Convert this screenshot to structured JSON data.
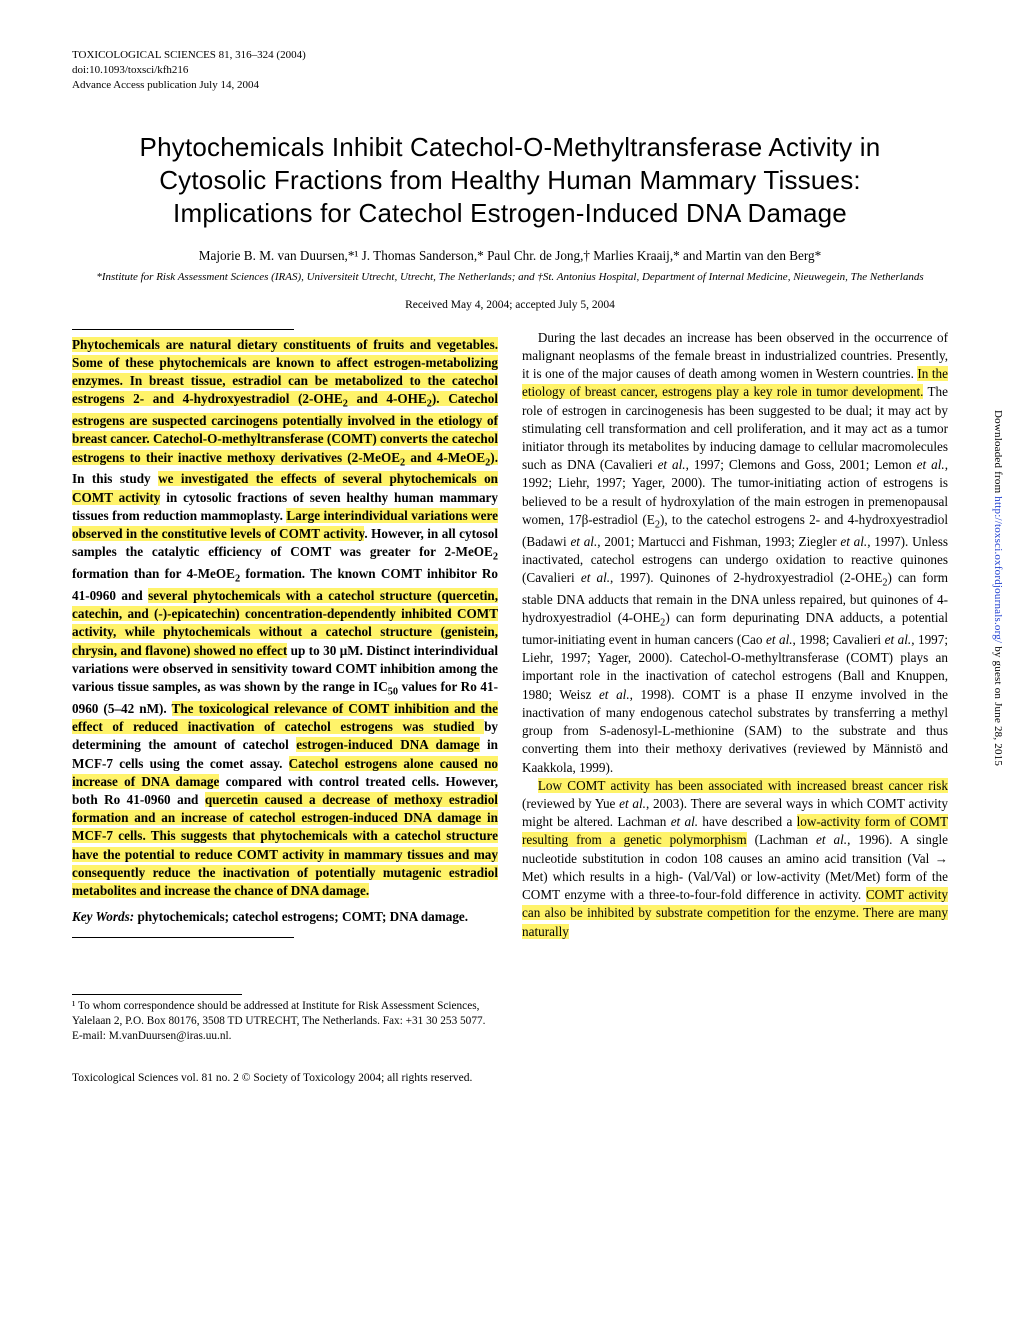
{
  "header": {
    "line1": "TOXICOLOGICAL SCIENCES 81, 316–324 (2004)",
    "line2": "doi:10.1093/toxsci/kfh216",
    "line3": "Advance Access publication July 14, 2004"
  },
  "title": {
    "line1": "Phytochemicals Inhibit Catechol-O-Methyltransferase Activity in",
    "line2": "Cytosolic Fractions from Healthy Human Mammary Tissues:",
    "line3": "Implications for Catechol Estrogen-Induced DNA Damage"
  },
  "authors": "Majorie B. M. van Duursen,*¹ J. Thomas Sanderson,* Paul Chr. de Jong,† Marlies Kraaij,* and Martin van den Berg*",
  "affiliations": "*Institute for Risk Assessment Sciences (IRAS), Universiteit Utrecht, Utrecht, The Netherlands; and †St. Antonius Hospital, Department of Internal Medicine, Nieuwegein, The Netherlands",
  "received": "Received May 4, 2004; accepted July 5, 2004",
  "highlight_color": "#fff36a",
  "abstract_segments": [
    {
      "t": "Phytochemicals are natural dietary constituents of fruits and vegetables. Some of these phytochemicals are known to affect estrogen-metabolizing enzymes. In breast tissue, estradiol can be metabolized to the catechol estrogens 2- and 4-hydroxyestradiol (2-OHE",
      "hl": true
    },
    {
      "t": "2",
      "hl": true,
      "sub": true
    },
    {
      "t": " and 4-OHE",
      "hl": true
    },
    {
      "t": "2",
      "hl": true,
      "sub": true
    },
    {
      "t": "). Catechol estrogens are suspected carcinogens potentially involved in the etiology of breast cancer. Catechol-O-methyltransferase (COMT) converts the catechol estrogens to their inactive methoxy derivatives (2-MeOE",
      "hl": true
    },
    {
      "t": "2",
      "hl": true,
      "sub": true
    },
    {
      "t": " and 4-MeOE",
      "hl": true
    },
    {
      "t": "2",
      "hl": true,
      "sub": true
    },
    {
      "t": ").",
      "hl": true
    },
    {
      "t": " In this study ",
      "hl": false
    },
    {
      "t": "we investigated the effects of several phytochemicals on COMT activity",
      "hl": true
    },
    {
      "t": " in cytosolic fractions of seven healthy human mammary tissues from reduction mammoplasty. ",
      "hl": false
    },
    {
      "t": "Large interindividual variations were observed in the constitutive levels of COMT activity",
      "hl": true
    },
    {
      "t": ". However, in all cytosol samples the catalytic efficiency of COMT was greater for 2-MeOE",
      "hl": false
    },
    {
      "t": "2",
      "hl": false,
      "sub": true
    },
    {
      "t": " formation than for 4-MeOE",
      "hl": false
    },
    {
      "t": "2",
      "hl": false,
      "sub": true
    },
    {
      "t": " formation. The known COMT inhibitor Ro 41-0960 and ",
      "hl": false
    },
    {
      "t": "several phytochemicals with a catechol structure (quercetin, catechin, and (-)-epicatechin) concentration-dependently inhibited COMT activity, while phytochemicals without a catechol structure (genistein, chrysin, and flavone) showed no effect",
      "hl": true
    },
    {
      "t": " up to 30 μM. Distinct interindividual variations were observed in sensitivity toward COMT inhibition among the various tissue samples, as was shown by the range in IC",
      "hl": false
    },
    {
      "t": "50",
      "hl": false,
      "sub": true
    },
    {
      "t": " values for Ro 41-0960 (5–42 nM). ",
      "hl": false
    },
    {
      "t": "The toxicological relevance of COMT inhibition and the effect of reduced inactivation of catechol estrogens was studied ",
      "hl": true
    },
    {
      "t": "by determining the amount of catechol ",
      "hl": false
    },
    {
      "t": "estrogen-induced DNA damage",
      "hl": true
    },
    {
      "t": " in MCF-7 cells using the comet assay. ",
      "hl": false
    },
    {
      "t": "Catechol estrogens alone caused no increase of DNA damage",
      "hl": true
    },
    {
      "t": " compared with control treated cells. However, both Ro 41-0960 and ",
      "hl": false
    },
    {
      "t": "quercetin caused a decrease of methoxy estradiol formation and an increase of catechol estrogen-induced DNA damage in MCF-7 cells. This suggests that phytochemicals with a catechol structure have the potential to reduce COMT activity in mammary tissues and may consequently reduce the inactivation of potentially mutagenic estradiol metabolites and increase the chance of DNA damage.",
      "hl": true
    }
  ],
  "keywords_label": "Key Words:",
  "keywords_text": " phytochemicals; catechol estrogens; COMT; DNA damage.",
  "footnote": "¹ To whom correspondence should be addressed at Institute for Risk Assessment Sciences, Yalelaan 2, P.O. Box 80176, 3508 TD UTRECHT, The Netherlands. Fax: +31 30 253 5077. E-mail: M.vanDuursen@iras.uu.nl.",
  "intro_html": "During the last decades an increase has been observed in the occurrence of malignant neoplasms of the female breast in industrialized countries. Presently, it is one of the major causes of death among women in Western countries. <span class=\"hl\">In the etiology of breast cancer, estrogens play a key role in tumor development.</span> The role of estrogen in carcinogenesis has been suggested to be dual; it may act by stimulating cell transformation and cell proliferation, and it may act as a tumor initiator through its metabolites by inducing damage to cellular macromolecules such as DNA (Cavalieri <i>et al.</i>, 1997; Clemons and Goss, 2001; Lemon <i>et al.</i>, 1992; Liehr, 1997; Yager, 2000). The tumor-initiating action of estrogens is believed to be a result of hydroxylation of the main estrogen in premenopausal women, 17β-estradiol (E<sub>2</sub>), to the catechol estrogens 2- and 4-hydroxyestradiol (Badawi <i>et al.</i>, 2001; Martucci and Fishman, 1993; Ziegler <i>et al.</i>, 1997). Unless inactivated, catechol estrogens can undergo oxidation to reactive quinones (Cavalieri <i>et al.</i>, 1997). Quinones of 2-hydroxyestradiol (2-OHE<sub>2</sub>) can form stable DNA adducts that remain in the DNA unless repaired, but quinones of 4-hydroxyestradiol (4-OHE<sub>2</sub>) can form depurinating DNA adducts, a potential tumor-initiating event in human cancers (Cao <i>et al.</i>, 1998; Cavalieri <i>et al.</i>, 1997; Liehr, 1997; Yager, 2000). Catechol-O-methyltransferase (COMT) plays an important role in the inactivation of catechol estrogens (Ball and Knuppen, 1980; Weisz <i>et al.</i>, 1998). COMT is a phase II enzyme involved in the inactivation of many endogenous catechol substrates by transferring a methyl group from S-adenosyl-L-methionine (SAM) to the substrate and thus converting them into their methoxy derivatives (reviewed by Männistö and Kaakkola, 1999).",
  "intro2_html": "<span class=\"hl\">Low COMT activity has been associated with increased breast cancer risk</span> (reviewed by Yue <i>et al.</i>, 2003). There are several ways in which COMT activity might be altered. Lachman <i>et al.</i> have described a <span class=\"hl\">low-activity form of COMT resulting from a genetic polymorphism</span> (Lachman <i>et al.</i>, 1996). A single nucleotide substitution in codon 108 causes an amino acid transition (Val → Met) which results in a high- (Val/Val) or low-activity (Met/Met) form of the COMT enzyme with a three-to-four-fold difference in activity. <span class=\"hl\">COMT activity can also be inhibited by substrate competition for the enzyme. There are many naturally</span>",
  "copyright": "Toxicological Sciences vol. 81 no. 2 © Society of Toxicology 2004; all rights reserved.",
  "sidenote_pre": "Downloaded from ",
  "sidenote_link": "http://toxsci.oxfordjournals.org/",
  "sidenote_post": " by guest on June 28, 2015"
}
